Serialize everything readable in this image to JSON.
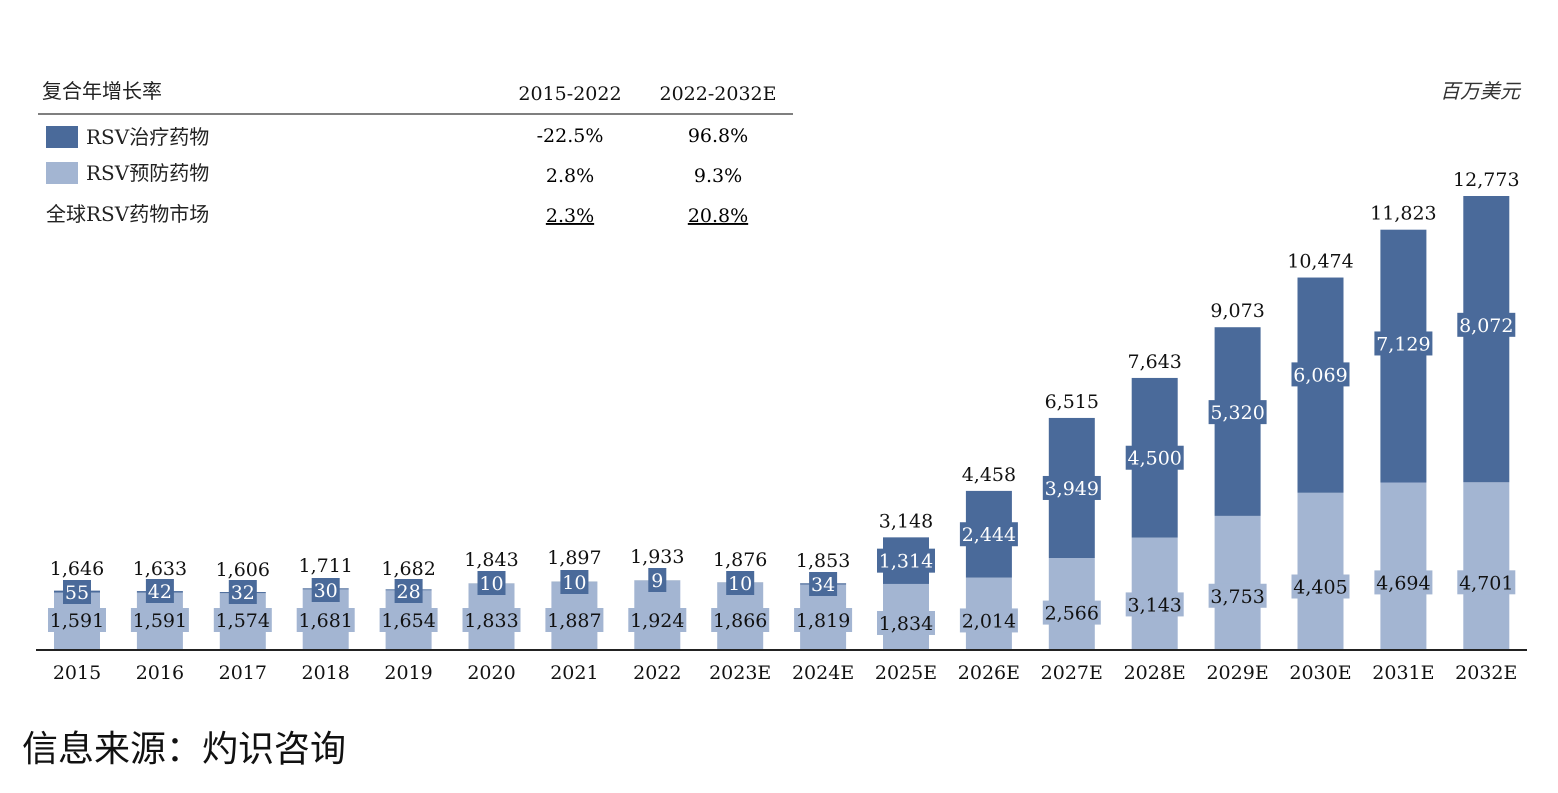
{
  "unit_label": "百万美元",
  "cagr_table": {
    "header_label": "复合年增长率",
    "period_1": "2015-2022",
    "period_2": "2022-2032E",
    "rows": [
      {
        "label": "RSV治疗药物",
        "swatch_color": "#4a6a9a",
        "v1": "-22.5%",
        "v2": "96.8%"
      },
      {
        "label": "RSV预防药物",
        "swatch_color": "#a3b5d2",
        "v1": "2.8%",
        "v2": "9.3%"
      },
      {
        "label": "全球RSV药物市场",
        "swatch_color": "",
        "v1": "2.3%",
        "v2": "20.8%"
      }
    ]
  },
  "chart_data": {
    "type": "bar",
    "stacked": true,
    "categories": [
      "2015",
      "2016",
      "2017",
      "2018",
      "2019",
      "2020",
      "2021",
      "2022",
      "2023E",
      "2024E",
      "2025E",
      "2026E",
      "2027E",
      "2028E",
      "2029E",
      "2030E",
      "2031E",
      "2032E"
    ],
    "series": [
      {
        "name": "RSV预防药物",
        "color": "#a3b5d2",
        "values": [
          1591,
          1591,
          1574,
          1681,
          1654,
          1833,
          1887,
          1924,
          1866,
          1819,
          1834,
          2014,
          2566,
          3143,
          3753,
          4405,
          4694,
          4701
        ],
        "labels": [
          "1,591",
          "1,591",
          "1,574",
          "1,681",
          "1,654",
          "1,833",
          "1,887",
          "1,924",
          "1,866",
          "1,819",
          "1,834",
          "2,014",
          "2,566",
          "3,143",
          "3,753",
          "4,405",
          "4,694",
          "4,701"
        ]
      },
      {
        "name": "RSV治疗药物",
        "color": "#4a6a9a",
        "values": [
          55,
          42,
          32,
          30,
          28,
          10,
          10,
          9,
          10,
          34,
          1314,
          2444,
          3949,
          4500,
          5320,
          6069,
          7129,
          8072
        ],
        "labels": [
          "55",
          "42",
          "32",
          "30",
          "28",
          "10",
          "10",
          "9",
          "10",
          "34",
          "1,314",
          "2,444",
          "3,949",
          "4,500",
          "5,320",
          "6,069",
          "7,129",
          "8,072"
        ]
      }
    ],
    "totals": [
      1646,
      1633,
      1606,
      1711,
      1682,
      1843,
      1897,
      1933,
      1876,
      1853,
      3148,
      4458,
      6515,
      7643,
      9073,
      10474,
      11823,
      12773
    ],
    "total_labels": [
      "1,646",
      "1,633",
      "1,606",
      "1,711",
      "1,682",
      "1,843",
      "1,897",
      "1,933",
      "1,876",
      "1,853",
      "3,148",
      "4,458",
      "6,515",
      "7,643",
      "9,073",
      "10,474",
      "11,823",
      "12,773"
    ],
    "ylim": [
      0,
      12773
    ],
    "grid": false
  },
  "source_text": "信息来源：灼识咨询"
}
